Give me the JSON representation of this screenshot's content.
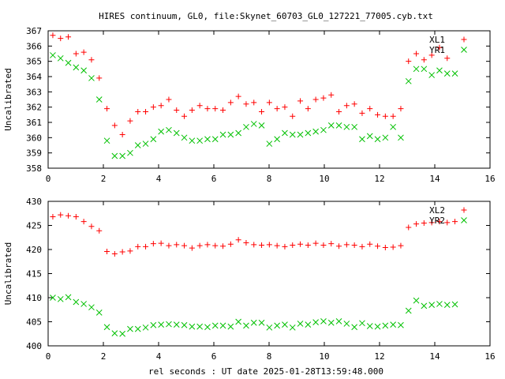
{
  "title": "HIRES continuum, GL0, file:Skynet_60703_GL0_127221_77005.cyb.txt",
  "xlabel": "rel seconds : UT date 2025-01-28T13:59:48.000",
  "chart_data": [
    {
      "type": "scatter",
      "ylabel": "Uncalibrated",
      "xlim": [
        0,
        16
      ],
      "ylim": [
        358,
        367
      ],
      "xticks": [
        0,
        2,
        4,
        6,
        8,
        10,
        12,
        14,
        16
      ],
      "yticks": [
        358,
        359,
        360,
        361,
        362,
        363,
        364,
        365,
        366,
        367
      ],
      "legend_position": "top-right",
      "series": [
        {
          "name": "XL1",
          "marker": "plus",
          "color": "#ff0000",
          "points": [
            [
              0.17,
              366.7
            ],
            [
              0.45,
              366.5
            ],
            [
              0.73,
              366.6
            ],
            [
              1.01,
              365.5
            ],
            [
              1.29,
              365.6
            ],
            [
              1.57,
              365.1
            ],
            [
              1.85,
              363.9
            ],
            [
              2.13,
              361.9
            ],
            [
              2.41,
              360.8
            ],
            [
              2.69,
              360.2
            ],
            [
              2.97,
              361.1
            ],
            [
              3.25,
              361.7
            ],
            [
              3.53,
              361.7
            ],
            [
              3.81,
              362.0
            ],
            [
              4.09,
              362.1
            ],
            [
              4.37,
              362.5
            ],
            [
              4.65,
              361.8
            ],
            [
              4.93,
              361.4
            ],
            [
              5.21,
              361.8
            ],
            [
              5.49,
              362.1
            ],
            [
              5.77,
              361.9
            ],
            [
              6.05,
              361.9
            ],
            [
              6.33,
              361.8
            ],
            [
              6.61,
              362.3
            ],
            [
              6.89,
              362.7
            ],
            [
              7.17,
              362.2
            ],
            [
              7.45,
              362.3
            ],
            [
              7.73,
              361.7
            ],
            [
              8.01,
              362.3
            ],
            [
              8.29,
              361.9
            ],
            [
              8.57,
              362.0
            ],
            [
              8.85,
              361.4
            ],
            [
              9.13,
              362.4
            ],
            [
              9.41,
              361.9
            ],
            [
              9.69,
              362.5
            ],
            [
              9.97,
              362.6
            ],
            [
              10.25,
              362.8
            ],
            [
              10.53,
              361.7
            ],
            [
              10.81,
              362.1
            ],
            [
              11.09,
              362.2
            ],
            [
              11.37,
              361.6
            ],
            [
              11.65,
              361.9
            ],
            [
              11.93,
              361.5
            ],
            [
              12.21,
              361.4
            ],
            [
              12.49,
              361.4
            ],
            [
              12.77,
              361.9
            ],
            [
              13.05,
              365.0
            ],
            [
              13.33,
              365.5
            ],
            [
              13.61,
              365.1
            ],
            [
              13.89,
              365.4
            ],
            [
              14.17,
              365.9
            ],
            [
              14.45,
              365.2
            ]
          ]
        },
        {
          "name": "YR1",
          "marker": "cross",
          "color": "#00c000",
          "points": [
            [
              0.17,
              365.4
            ],
            [
              0.45,
              365.2
            ],
            [
              0.73,
              364.9
            ],
            [
              1.01,
              364.6
            ],
            [
              1.29,
              364.4
            ],
            [
              1.57,
              363.9
            ],
            [
              1.85,
              362.5
            ],
            [
              2.13,
              359.8
            ],
            [
              2.41,
              358.8
            ],
            [
              2.69,
              358.8
            ],
            [
              2.97,
              359.0
            ],
            [
              3.25,
              359.5
            ],
            [
              3.53,
              359.6
            ],
            [
              3.81,
              359.9
            ],
            [
              4.09,
              360.4
            ],
            [
              4.37,
              360.5
            ],
            [
              4.65,
              360.3
            ],
            [
              4.93,
              360.0
            ],
            [
              5.21,
              359.8
            ],
            [
              5.49,
              359.8
            ],
            [
              5.77,
              359.9
            ],
            [
              6.05,
              359.9
            ],
            [
              6.33,
              360.2
            ],
            [
              6.61,
              360.2
            ],
            [
              6.89,
              360.3
            ],
            [
              7.17,
              360.7
            ],
            [
              7.45,
              360.9
            ],
            [
              7.73,
              360.8
            ],
            [
              8.01,
              359.6
            ],
            [
              8.29,
              359.9
            ],
            [
              8.57,
              360.3
            ],
            [
              8.85,
              360.2
            ],
            [
              9.13,
              360.2
            ],
            [
              9.41,
              360.3
            ],
            [
              9.69,
              360.4
            ],
            [
              9.97,
              360.5
            ],
            [
              10.25,
              360.8
            ],
            [
              10.53,
              360.8
            ],
            [
              10.81,
              360.7
            ],
            [
              11.09,
              360.7
            ],
            [
              11.37,
              359.9
            ],
            [
              11.65,
              360.1
            ],
            [
              11.93,
              359.9
            ],
            [
              12.21,
              360.0
            ],
            [
              12.49,
              360.7
            ],
            [
              12.77,
              360.0
            ],
            [
              13.05,
              363.7
            ],
            [
              13.33,
              364.5
            ],
            [
              13.61,
              364.5
            ],
            [
              13.89,
              364.1
            ],
            [
              14.17,
              364.4
            ],
            [
              14.45,
              364.2
            ],
            [
              14.73,
              364.2
            ]
          ]
        }
      ]
    },
    {
      "type": "scatter",
      "ylabel": "Uncalibrated",
      "xlim": [
        0,
        16
      ],
      "ylim": [
        400,
        430
      ],
      "xticks": [
        0,
        2,
        4,
        6,
        8,
        10,
        12,
        14,
        16
      ],
      "yticks": [
        400,
        405,
        410,
        415,
        420,
        425,
        430
      ],
      "legend_position": "top-right",
      "series": [
        {
          "name": "XL2",
          "marker": "plus",
          "color": "#ff0000",
          "points": [
            [
              0.17,
              426.8
            ],
            [
              0.45,
              427.2
            ],
            [
              0.73,
              427.0
            ],
            [
              1.01,
              426.8
            ],
            [
              1.29,
              425.8
            ],
            [
              1.57,
              424.8
            ],
            [
              1.85,
              423.9
            ],
            [
              2.13,
              419.6
            ],
            [
              2.41,
              419.1
            ],
            [
              2.69,
              419.5
            ],
            [
              2.97,
              419.7
            ],
            [
              3.25,
              420.6
            ],
            [
              3.53,
              420.6
            ],
            [
              3.81,
              421.2
            ],
            [
              4.09,
              421.3
            ],
            [
              4.37,
              420.8
            ],
            [
              4.65,
              421.0
            ],
            [
              4.93,
              420.8
            ],
            [
              5.21,
              420.3
            ],
            [
              5.49,
              420.8
            ],
            [
              5.77,
              421.0
            ],
            [
              6.05,
              420.8
            ],
            [
              6.33,
              420.7
            ],
            [
              6.61,
              421.1
            ],
            [
              6.89,
              422.0
            ],
            [
              7.17,
              421.4
            ],
            [
              7.45,
              421.0
            ],
            [
              7.73,
              420.9
            ],
            [
              8.01,
              421.0
            ],
            [
              8.29,
              420.8
            ],
            [
              8.57,
              420.6
            ],
            [
              8.85,
              420.9
            ],
            [
              9.13,
              421.1
            ],
            [
              9.41,
              420.9
            ],
            [
              9.69,
              421.3
            ],
            [
              9.97,
              420.9
            ],
            [
              10.25,
              421.2
            ],
            [
              10.53,
              420.7
            ],
            [
              10.81,
              421.0
            ],
            [
              11.09,
              420.9
            ],
            [
              11.37,
              420.6
            ],
            [
              11.65,
              421.1
            ],
            [
              11.93,
              420.7
            ],
            [
              12.21,
              420.4
            ],
            [
              12.49,
              420.5
            ],
            [
              12.77,
              420.8
            ],
            [
              13.05,
              424.6
            ],
            [
              13.33,
              425.3
            ],
            [
              13.61,
              425.5
            ],
            [
              13.89,
              425.6
            ],
            [
              14.17,
              425.8
            ],
            [
              14.45,
              425.6
            ],
            [
              14.73,
              425.8
            ]
          ]
        },
        {
          "name": "YR2",
          "marker": "cross",
          "color": "#00c000",
          "points": [
            [
              0.17,
              410.0
            ],
            [
              0.45,
              409.7
            ],
            [
              0.73,
              410.1
            ],
            [
              1.01,
              409.1
            ],
            [
              1.29,
              408.7
            ],
            [
              1.57,
              408.0
            ],
            [
              1.85,
              406.9
            ],
            [
              2.13,
              403.9
            ],
            [
              2.41,
              402.6
            ],
            [
              2.69,
              402.5
            ],
            [
              2.97,
              403.5
            ],
            [
              3.25,
              403.5
            ],
            [
              3.53,
              403.8
            ],
            [
              3.81,
              404.3
            ],
            [
              4.09,
              404.4
            ],
            [
              4.37,
              404.5
            ],
            [
              4.65,
              404.4
            ],
            [
              4.93,
              404.3
            ],
            [
              5.21,
              404.0
            ],
            [
              5.49,
              404.0
            ],
            [
              5.77,
              403.9
            ],
            [
              6.05,
              404.2
            ],
            [
              6.33,
              404.2
            ],
            [
              6.61,
              404.0
            ],
            [
              6.89,
              405.0
            ],
            [
              7.17,
              404.2
            ],
            [
              7.45,
              404.8
            ],
            [
              7.73,
              404.8
            ],
            [
              8.01,
              403.8
            ],
            [
              8.29,
              404.2
            ],
            [
              8.57,
              404.4
            ],
            [
              8.85,
              403.8
            ],
            [
              9.13,
              404.6
            ],
            [
              9.41,
              404.4
            ],
            [
              9.69,
              404.9
            ],
            [
              9.97,
              405.1
            ],
            [
              10.25,
              404.8
            ],
            [
              10.53,
              405.1
            ],
            [
              10.81,
              404.6
            ],
            [
              11.09,
              403.9
            ],
            [
              11.37,
              404.7
            ],
            [
              11.65,
              404.1
            ],
            [
              11.93,
              404.0
            ],
            [
              12.21,
              404.2
            ],
            [
              12.49,
              404.4
            ],
            [
              12.77,
              404.3
            ],
            [
              13.05,
              407.3
            ],
            [
              13.33,
              409.4
            ],
            [
              13.61,
              408.3
            ],
            [
              13.89,
              408.5
            ],
            [
              14.17,
              408.7
            ],
            [
              14.45,
              408.5
            ],
            [
              14.73,
              408.6
            ]
          ]
        }
      ]
    }
  ]
}
